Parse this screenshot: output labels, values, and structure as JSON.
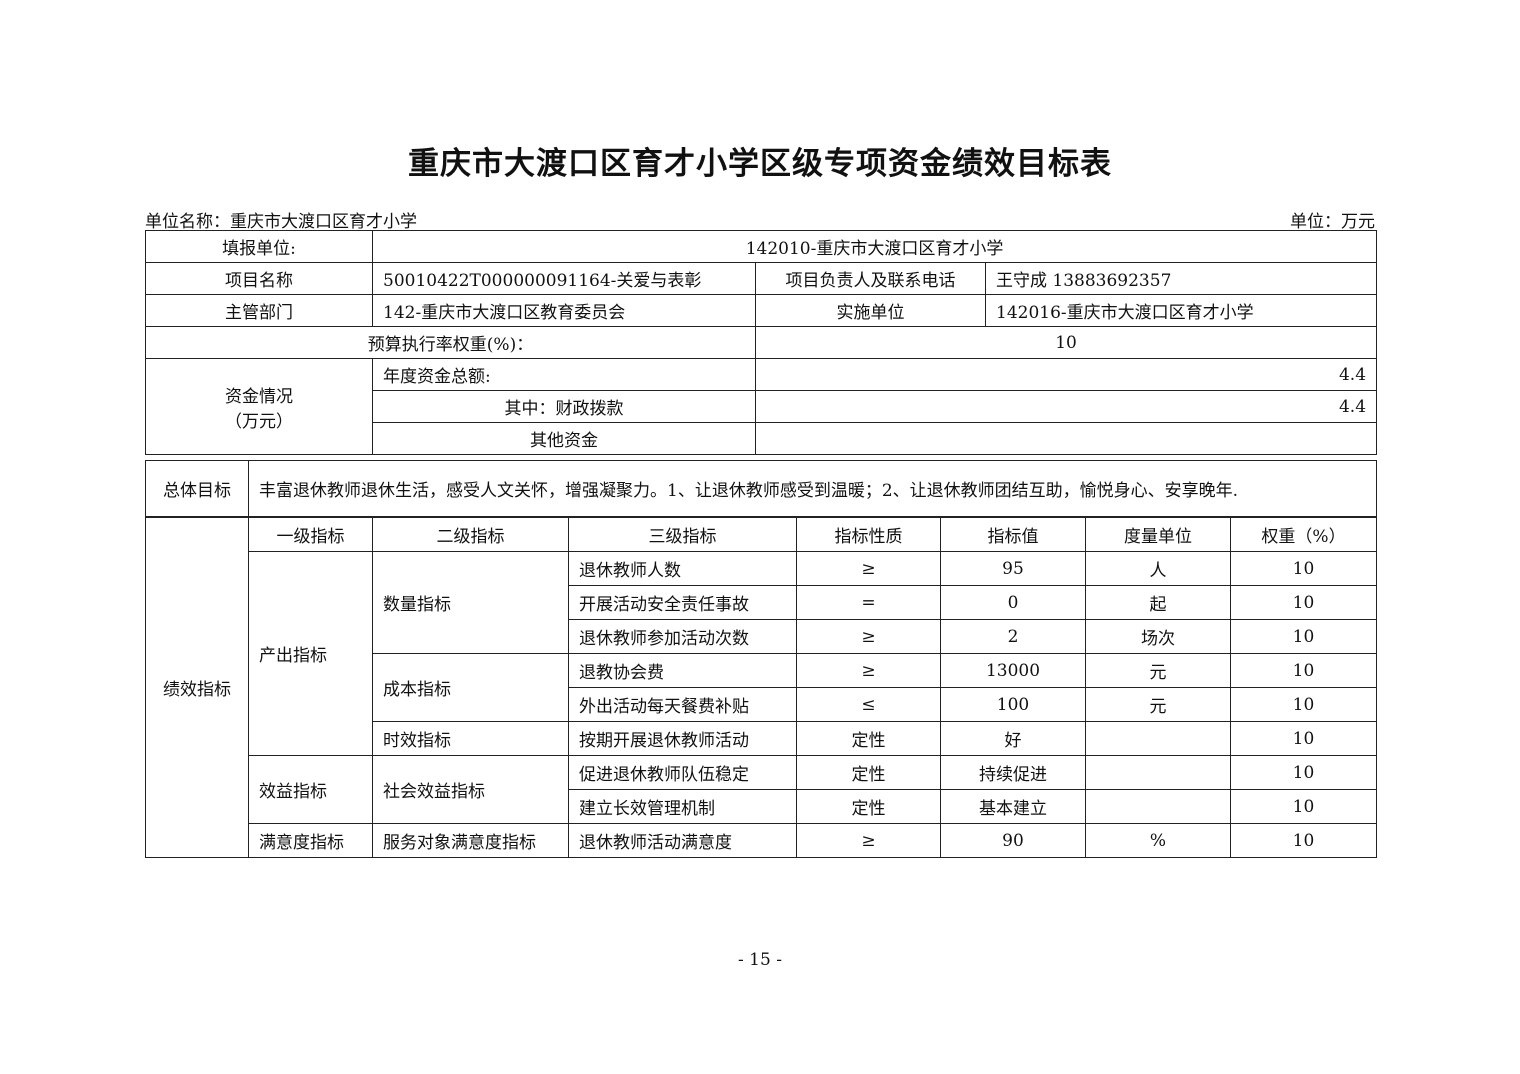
{
  "title": "重庆市大渡口区育才小学区级专项资金绩效目标表",
  "unit_name": "单位名称：重庆市大渡口区育才小学",
  "unit": "单位：万元",
  "info": {
    "reporting_unit_label": "填报单位:",
    "reporting_unit": "142010-重庆市大渡口区育才小学",
    "project_name_label": "项目名称",
    "project_name": "50010422T000000091164-关爱与表彰",
    "contact_label": "项目负责人及联系电话",
    "contact": "王守成 13883692357",
    "department_label": "主管部门",
    "department": "142-重庆市大渡口区教育委员会",
    "implementer_label": "实施单位",
    "implementer": "142016-重庆市大渡口区育才小学",
    "budget_weight_label": "预算执行率权重(%)：",
    "budget_weight": "10",
    "funds_label": "资金情况",
    "funds_unit": "（万元）",
    "annual_total_label": "年度资金总额:",
    "annual_total": "4.4",
    "fiscal_label": "其中：财政拨款",
    "fiscal": "4.4",
    "other_label": "其他资金",
    "other": ""
  },
  "goal": {
    "label": "总体目标",
    "text": "丰富退休教师退休生活，感受人文关怀，增强凝聚力。1、让退休教师感受到温暖；2、让退休教师团结互助，愉悦身心、安享晚年."
  },
  "indicators": {
    "label": "绩效指标",
    "headers": [
      "一级指标",
      "二级指标",
      "三级指标",
      "指标性质",
      "指标值",
      "度量单位",
      "权重（%）"
    ],
    "rows": [
      {
        "l1": "产出指标",
        "l1span": 6,
        "l2": "数量指标",
        "l2span": 3,
        "l3": "退休教师人数",
        "nature": "≥",
        "value": "95",
        "unit": "人",
        "weight": "10"
      },
      {
        "l3": "开展活动安全责任事故",
        "nature": "=",
        "value": "0",
        "unit": "起",
        "weight": "10"
      },
      {
        "l3": "退休教师参加活动次数",
        "nature": "≥",
        "value": "2",
        "unit": "场次",
        "weight": "10"
      },
      {
        "l2": "成本指标",
        "l2span": 2,
        "l3": "退教协会费",
        "nature": "≥",
        "value": "13000",
        "unit": "元",
        "weight": "10"
      },
      {
        "l3": "外出活动每天餐费补贴",
        "nature": "≤",
        "value": "100",
        "unit": "元",
        "weight": "10"
      },
      {
        "l2": "时效指标",
        "l2span": 1,
        "l3": "按期开展退休教师活动",
        "nature": "定性",
        "value": "好",
        "unit": "",
        "weight": "10"
      },
      {
        "l1": "效益指标",
        "l1span": 2,
        "l2": "社会效益指标",
        "l2span": 2,
        "l3": "促进退休教师队伍稳定",
        "nature": "定性",
        "value": "持续促进",
        "unit": "",
        "weight": "10"
      },
      {
        "l3": "建立长效管理机制",
        "nature": "定性",
        "value": "基本建立",
        "unit": "",
        "weight": "10"
      },
      {
        "l1": "满意度指标",
        "l1span": 1,
        "l2": "服务对象满意度指标",
        "l2span": 1,
        "l3": "退休教师活动满意度",
        "nature": "≥",
        "value": "90",
        "unit": "%",
        "weight": "10"
      }
    ]
  },
  "page_number": "- 15 -"
}
